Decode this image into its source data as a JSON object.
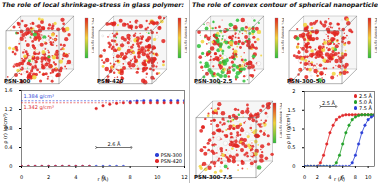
{
  "panels": [
    {
      "title": "The role of local shrinkage-stress in glass polymer:",
      "boxes": [
        "PSN-300",
        "PSN-420"
      ]
    },
    {
      "title": "The role of convex contour of spherical nanoparticle:",
      "boxes": [
        "PSN-300-2.5",
        "PSN-300-5.0",
        "PSN-300-7.5"
      ]
    }
  ],
  "colorbar_label": "PVC density (g/cm³)",
  "chart_data": [
    {
      "type": "scatter",
      "marker": "circle",
      "x_label": "r (Å)",
      "y_label": "ρ (r) (g/cm³)",
      "x": [
        0,
        0.5,
        1,
        1.5,
        2,
        2.5,
        3,
        3.5,
        4,
        4.5,
        5,
        5.5,
        6,
        6.5,
        7,
        7.5,
        8,
        8.5,
        9,
        9.5,
        10,
        10.5,
        11,
        11.5,
        12
      ],
      "series": [
        {
          "name": "PSN-300",
          "color": "#2b3fd6",
          "values": [
            0,
            0,
            0,
            0,
            0,
            0,
            0,
            0,
            0,
            0,
            0,
            0,
            0,
            0,
            0,
            0,
            1.36,
            1.38,
            1.384,
            1.384,
            1.384,
            1.384,
            1.384,
            1.384,
            1.384
          ]
        },
        {
          "name": "PSN-420",
          "color": "#e0282a",
          "values": [
            0,
            0,
            0,
            0,
            0,
            0,
            0,
            0,
            0,
            0,
            0,
            1.22,
            1.28,
            1.31,
            1.33,
            1.342,
            1.342,
            1.342,
            1.342,
            1.342,
            1.342,
            1.342,
            1.342,
            1.342,
            1.342
          ]
        }
      ],
      "xlim": [
        0,
        12
      ],
      "xticks": [
        0,
        2,
        4,
        6,
        8,
        10,
        12
      ],
      "ylim": [
        0,
        1.6
      ],
      "yticks": [
        0,
        0.4,
        0.8,
        1.2,
        1.6
      ],
      "legend": "bottom-right",
      "annotations": [
        {
          "text": "1.384 g/cm³",
          "y": 1.384
        },
        {
          "text": "1.342 g/cm³",
          "y": 1.342
        },
        {
          "text": "2.6 Å",
          "dx": 2.6
        }
      ]
    },
    {
      "type": "line",
      "marker": "circle",
      "x_label": "r (Å)",
      "y_label": "ρ (r) (g/cm³)",
      "x": [
        0,
        0.5,
        1,
        1.5,
        2,
        2.5,
        3,
        3.5,
        4,
        4.5,
        5,
        5.5,
        6,
        6.5,
        7,
        7.5,
        8,
        8.5,
        9,
        9.5,
        10,
        10.5,
        11
      ],
      "series": [
        {
          "name": "2.5 Å",
          "color": "#e0282a",
          "values": [
            0,
            0,
            0,
            0,
            0,
            0.1,
            0.3,
            0.6,
            0.9,
            1.1,
            1.25,
            1.32,
            1.36,
            1.38,
            1.38,
            1.38,
            1.38,
            1.38,
            1.38,
            1.38,
            1.38,
            1.38,
            1.38
          ]
        },
        {
          "name": "5.0 Å",
          "color": "#22a02a",
          "values": [
            0,
            0,
            0,
            0,
            0,
            0,
            0,
            0,
            0,
            0,
            0.1,
            0.3,
            0.6,
            0.9,
            1.1,
            1.25,
            1.32,
            1.36,
            1.38,
            1.38,
            1.38,
            1.38,
            1.38
          ]
        },
        {
          "name": "7.5 Å",
          "color": "#2b3fd6",
          "values": [
            0,
            0,
            0,
            0,
            0,
            0,
            0,
            0,
            0,
            0,
            0,
            0,
            0,
            0,
            0,
            0.1,
            0.3,
            0.6,
            0.9,
            1.1,
            1.25,
            1.32,
            1.36
          ]
        }
      ],
      "xlim": [
        0,
        11
      ],
      "xticks": [
        0,
        2,
        4,
        6,
        8,
        10
      ],
      "ylim": [
        0,
        2
      ],
      "yticks": [
        0,
        0.5,
        1,
        1.5,
        2
      ],
      "legend": "top-right",
      "annotations": [
        {
          "text": "2.5 Å",
          "dx": 2.5
        }
      ]
    }
  ]
}
